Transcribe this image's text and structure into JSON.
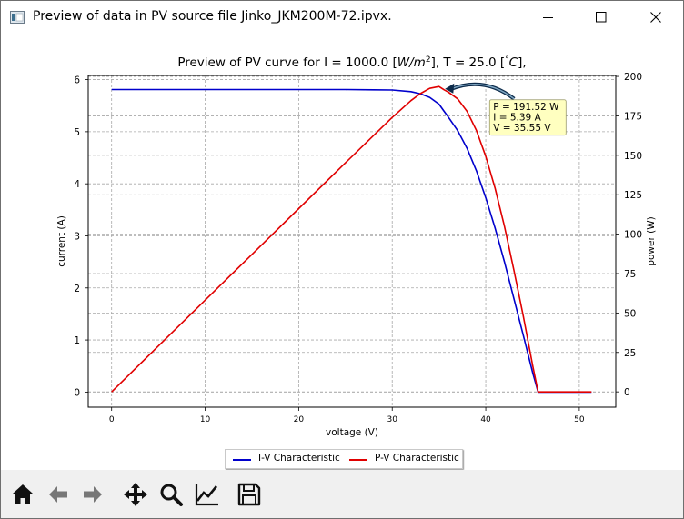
{
  "window": {
    "title": "Preview of data in PV source file Jinko_JKM200M-72.ipvx.",
    "icons": [
      "app-icon",
      "minimize-icon",
      "maximize-icon",
      "close-icon"
    ]
  },
  "chart_data": {
    "type": "line",
    "title": "Preview of PV curve for I = 1000.0 [W/m²], T =  25.0 [°C],",
    "title_parts": {
      "pre": "Preview of PV curve for I = 1000.0 [",
      "unit1": "W/m",
      "sup": "2",
      "mid": "], T =  25.0 [",
      "deg": "°",
      "unit2": "C",
      "post": "],"
    },
    "xlabel": "voltage (V)",
    "ylabel": "current (A)",
    "y2label": "power (W)",
    "xlim": [
      -2.5,
      53.9
    ],
    "ylim": [
      -0.29,
      6.08
    ],
    "y2lim": [
      -9.7,
      200.6
    ],
    "xticks": [
      0,
      10,
      20,
      30,
      40,
      50
    ],
    "yticks": [
      0,
      1,
      2,
      3,
      4,
      5,
      6
    ],
    "y2ticks": [
      0,
      25,
      50,
      75,
      100,
      125,
      150,
      175,
      200
    ],
    "grid": true,
    "legend_position": "bottom-center",
    "series": [
      {
        "name": "I-V Characteristic",
        "axis": "left",
        "color": "#0000cc",
        "x": [
          0,
          5,
          10,
          15,
          20,
          25,
          28,
          30,
          32,
          33,
          34,
          35,
          35.55,
          36,
          37,
          38,
          39,
          40,
          41,
          42,
          43,
          44,
          45,
          45.6,
          46,
          48,
          50,
          51.3
        ],
        "y": [
          5.81,
          5.81,
          5.81,
          5.81,
          5.81,
          5.81,
          5.805,
          5.8,
          5.77,
          5.73,
          5.66,
          5.53,
          5.39,
          5.28,
          5.02,
          4.68,
          4.25,
          3.73,
          3.15,
          2.5,
          1.8,
          1.1,
          0.38,
          0,
          0,
          0,
          0,
          0
        ]
      },
      {
        "name": "P-V Characteristic",
        "axis": "right",
        "color": "#e00000",
        "x": [
          0,
          5,
          10,
          15,
          20,
          25,
          28,
          30,
          32,
          33,
          34,
          35,
          35.55,
          36,
          37,
          38,
          39,
          40,
          41,
          42,
          43,
          44,
          45,
          45.6,
          46,
          48,
          50,
          51.3
        ],
        "y": [
          0,
          29.05,
          58.1,
          87.15,
          116.2,
          145.25,
          162.54,
          174.0,
          184.64,
          189.09,
          192.44,
          193.55,
          191.52,
          190.08,
          185.74,
          177.84,
          165.75,
          149.2,
          129.15,
          105.0,
          77.4,
          48.4,
          17.1,
          0,
          0,
          0,
          0,
          0
        ]
      }
    ],
    "annotation": {
      "lines": [
        "P = 191.52 W",
        "I = 5.39 A",
        "V = 35.55 V"
      ],
      "point": {
        "x": 35.55,
        "y": 191.52,
        "axis": "right"
      },
      "box_fill": "#ffffc0"
    }
  },
  "toolbar": {
    "buttons": [
      {
        "name": "home-button",
        "icon": "home-icon"
      },
      {
        "name": "back-button",
        "icon": "arrow-left-icon"
      },
      {
        "name": "forward-button",
        "icon": "arrow-right-icon"
      },
      {
        "name": "pan-button",
        "icon": "move-icon"
      },
      {
        "name": "zoom-button",
        "icon": "magnifier-icon"
      },
      {
        "name": "configure-subplots-button",
        "icon": "line-chart-icon"
      },
      {
        "name": "save-button",
        "icon": "floppy-disk-icon"
      }
    ]
  }
}
